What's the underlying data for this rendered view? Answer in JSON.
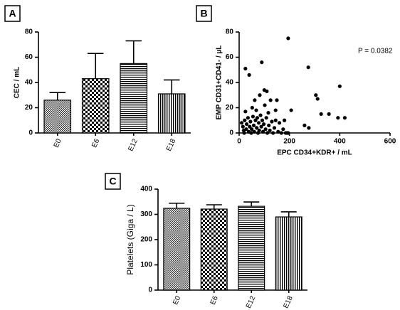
{
  "chart_data": [
    {
      "type": "bar",
      "panel": "A",
      "y_label": "CEC / mL",
      "categories": [
        "E0",
        "E6",
        "E12",
        "E18"
      ],
      "values": [
        26,
        43,
        55,
        31
      ],
      "errors": [
        6,
        20,
        18,
        11
      ],
      "fills": [
        "crosshatch",
        "checker",
        "hlines",
        "vlines"
      ],
      "ylim": [
        0,
        80
      ],
      "yticks": [
        0,
        20,
        40,
        60,
        80
      ]
    },
    {
      "type": "scatter",
      "panel": "B",
      "y_label": "EMP CD31+CD41- / µL",
      "x_label": "EPC CD34+KDR+ / mL",
      "annotation": "P = 0.0382",
      "color": "#000000",
      "x": [
        195,
        25,
        40,
        90,
        275,
        400,
        82,
        100,
        110,
        62,
        125,
        150,
        305,
        312,
        326,
        357,
        393,
        420,
        207,
        145,
        116,
        25,
        260,
        277,
        10,
        15,
        18,
        20,
        22,
        28,
        30,
        35,
        38,
        42,
        45,
        48,
        50,
        55,
        58,
        60,
        65,
        70,
        72,
        75,
        78,
        80,
        85,
        88,
        92,
        95,
        98,
        105,
        108,
        112,
        118,
        122,
        130,
        135,
        140,
        155,
        160,
        168,
        175,
        185,
        190,
        195,
        145,
        52,
        68,
        102,
        180
      ],
      "values": [
        75,
        51,
        46,
        56,
        52,
        37,
        30,
        34,
        33,
        26,
        26,
        26,
        30,
        27,
        15,
        15,
        12,
        12,
        18,
        18,
        16,
        17,
        6,
        4,
        8,
        5,
        2,
        0,
        10,
        3,
        7,
        12,
        1,
        5,
        9,
        0,
        3,
        13,
        6,
        1,
        10,
        4,
        12,
        0,
        8,
        2,
        14,
        5,
        10,
        1,
        7,
        3,
        12,
        0,
        6,
        2,
        9,
        0,
        4,
        1,
        8,
        0,
        3,
        0,
        0,
        0,
        10,
        20,
        18,
        22,
        10
      ],
      "xlim": [
        0,
        600
      ],
      "xticks": [
        0,
        200,
        400,
        600
      ],
      "ylim": [
        0,
        80
      ],
      "yticks": [
        0,
        20,
        40,
        60,
        80
      ]
    },
    {
      "type": "bar",
      "panel": "C",
      "y_label": "Platelets  (Giga / L)",
      "categories": [
        "E0",
        "E6",
        "E12",
        "E18"
      ],
      "values": [
        324,
        321,
        332,
        290
      ],
      "errors": [
        20,
        17,
        17,
        20
      ],
      "fills": [
        "crosshatch",
        "checker",
        "hlines",
        "vlines"
      ],
      "ylim": [
        0,
        400
      ],
      "yticks": [
        0,
        100,
        200,
        300,
        400
      ]
    }
  ]
}
